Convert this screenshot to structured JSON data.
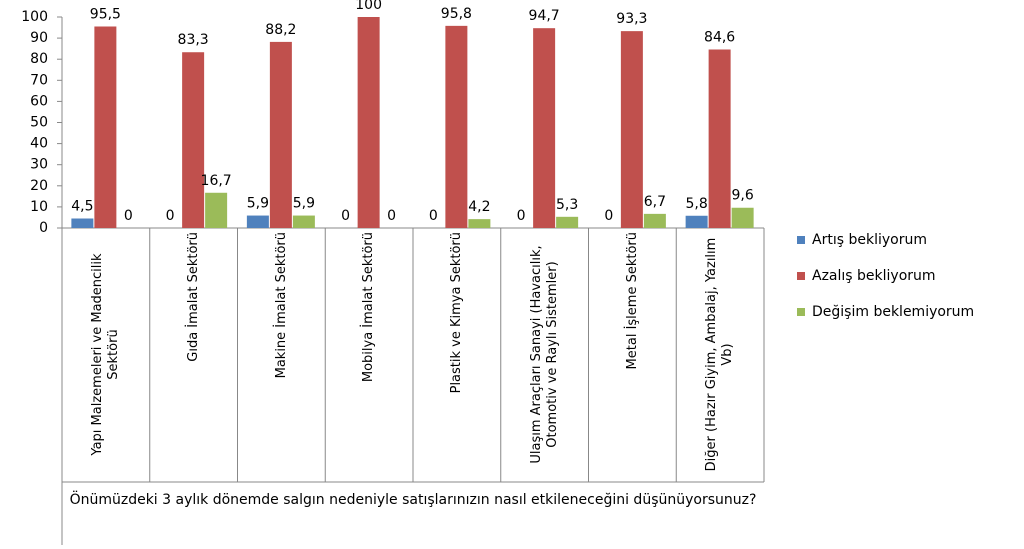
{
  "chart_data": {
    "type": "bar",
    "categories": [
      "Yapı Malzemeleri ve Madencilik Sektörü",
      "Gıda İmalat Sektörü",
      "Makine İmalat Sektörü",
      "Mobilya İmalat Sektörü",
      "Plastik ve Kimya Sektörü",
      "Ulaşım Araçları Sanayi (Havacılık, Otomotiv ve Raylı Sistemler)",
      "Metal İşleme Sektörü",
      "Diğer (Hazır Giyim, Ambalaj, Yazılım Vb)"
    ],
    "series": [
      {
        "name": "Artış bekliyorum",
        "color": "#4f81bd",
        "values": [
          4.5,
          0,
          5.9,
          0,
          0,
          0,
          0,
          5.8
        ],
        "value_labels": [
          "4,5",
          "0",
          "5,9",
          "0",
          "0",
          "0",
          "0",
          "5,8"
        ]
      },
      {
        "name": "Azalış bekliyorum",
        "color": "#c0504d",
        "values": [
          95.5,
          83.3,
          88.2,
          100,
          95.8,
          94.7,
          93.3,
          84.6
        ],
        "value_labels": [
          "95,5",
          "83,3",
          "88,2",
          "100",
          "95,8",
          "94,7",
          "93,3",
          "84,6"
        ]
      },
      {
        "name": "Değişim beklemiyorum",
        "color": "#9bbb59",
        "values": [
          0,
          16.7,
          5.9,
          0,
          4.2,
          5.3,
          6.7,
          9.6
        ],
        "value_labels": [
          "0",
          "16,7",
          "5,9",
          "0",
          "4,2",
          "5,3",
          "6,7",
          "9,6"
        ]
      }
    ],
    "x_label": "Önümüzdeki 3 aylık dönemde salgın nedeniyle satışlarınızın nasıl etkileneceğini düşünüyorsunuz?",
    "ylim": [
      0,
      100
    ],
    "yticks": [
      0,
      10,
      20,
      30,
      40,
      50,
      60,
      70,
      80,
      90,
      100
    ],
    "grid": false,
    "legend": "right"
  }
}
